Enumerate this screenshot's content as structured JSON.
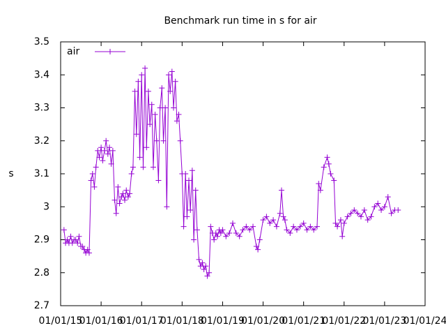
{
  "chart_data": {
    "type": "line",
    "title": "Benchmark run time in s for air",
    "y_label": "s",
    "legend_position": "top-left",
    "xlim": [
      "01/01/15",
      "01/01/24"
    ],
    "xticks": [
      "01/01/15",
      "01/01/16",
      "01/01/17",
      "01/01/18",
      "01/01/19",
      "01/01/20",
      "01/01/21",
      "01/01/22",
      "01/01/23",
      "01/01/24"
    ],
    "ylim": [
      2.7,
      3.5
    ],
    "yticks": [
      2.7,
      2.8,
      2.9,
      3,
      3.1,
      3.2,
      3.3,
      3.4,
      3.5
    ],
    "grid": false,
    "x": [
      "02/01/15",
      "02/15/15",
      "03/01/15",
      "03/15/15",
      "04/01/15",
      "04/15/15",
      "05/01/15",
      "05/15/15",
      "06/01/15",
      "06/15/15",
      "07/01/15",
      "07/15/15",
      "08/01/15",
      "08/15/15",
      "09/01/15",
      "09/15/15",
      "10/01/15",
      "10/15/15",
      "11/01/15",
      "11/15/15",
      "12/01/15",
      "12/15/15",
      "01/01/16",
      "01/15/16",
      "02/01/16",
      "02/15/16",
      "03/01/16",
      "03/15/16",
      "04/01/16",
      "04/15/16",
      "05/01/16",
      "05/15/16",
      "06/01/16",
      "06/15/16",
      "07/01/16",
      "07/15/16",
      "08/01/16",
      "08/15/16",
      "09/01/16",
      "09/15/16",
      "10/01/16",
      "10/15/16",
      "11/01/16",
      "11/15/16",
      "12/01/16",
      "12/15/16",
      "01/01/17",
      "01/15/17",
      "02/01/17",
      "02/15/17",
      "03/01/17",
      "03/15/17",
      "04/01/17",
      "04/15/17",
      "05/01/17",
      "05/15/17",
      "06/01/17",
      "06/15/17",
      "07/01/17",
      "07/15/17",
      "08/01/17",
      "08/15/17",
      "09/01/17",
      "09/15/17",
      "10/01/17",
      "10/15/17",
      "11/01/17",
      "11/15/17",
      "12/01/17",
      "12/15/17",
      "01/01/18",
      "01/15/18",
      "02/01/18",
      "02/15/18",
      "03/01/18",
      "03/15/18",
      "04/01/18",
      "04/15/18",
      "05/01/18",
      "05/15/18",
      "06/01/18",
      "06/15/18",
      "07/01/18",
      "07/15/18",
      "08/01/18",
      "08/15/18",
      "09/01/18",
      "09/15/18",
      "10/01/18",
      "10/15/18",
      "11/01/18",
      "11/15/18",
      "12/01/18",
      "12/15/18",
      "01/01/19",
      "02/01/19",
      "03/01/19",
      "04/01/19",
      "05/01/19",
      "06/01/19",
      "07/01/19",
      "08/01/19",
      "09/01/19",
      "10/01/19",
      "11/01/19",
      "11/15/19",
      "12/01/19",
      "01/01/20",
      "02/01/20",
      "03/01/20",
      "04/01/20",
      "05/01/20",
      "06/01/20",
      "06/15/20",
      "07/01/20",
      "07/15/20",
      "08/01/20",
      "09/01/20",
      "10/01/20",
      "11/01/20",
      "12/01/20",
      "01/01/21",
      "02/01/21",
      "03/01/21",
      "04/01/21",
      "05/01/21",
      "05/15/21",
      "06/01/21",
      "07/01/21",
      "08/01/21",
      "08/15/21",
      "09/01/21",
      "10/01/21",
      "10/15/21",
      "11/01/21",
      "12/01/21",
      "12/15/21",
      "01/01/22",
      "02/01/22",
      "03/01/22",
      "04/01/22",
      "05/01/22",
      "06/01/22",
      "07/01/22",
      "08/01/22",
      "09/01/22",
      "10/01/22",
      "11/01/22",
      "12/01/22",
      "01/01/23",
      "02/01/23",
      "03/01/23",
      "04/01/23",
      "05/01/23"
    ],
    "series": [
      {
        "name": "air",
        "color": "#9400d3",
        "values": [
          2.93,
          2.89,
          2.9,
          2.89,
          2.91,
          2.89,
          2.9,
          2.9,
          2.89,
          2.91,
          2.88,
          2.88,
          2.87,
          2.86,
          2.87,
          2.86,
          3.08,
          3.1,
          3.06,
          3.12,
          3.17,
          3.15,
          3.18,
          3.14,
          3.17,
          3.2,
          3.16,
          3.18,
          3.13,
          3.17,
          3.02,
          2.98,
          3.06,
          3.01,
          3.03,
          3.04,
          3.02,
          3.05,
          3.03,
          3.04,
          3.1,
          3.12,
          3.35,
          3.22,
          3.38,
          3.15,
          3.4,
          3.12,
          3.42,
          3.18,
          3.35,
          3.25,
          3.31,
          3.12,
          3.28,
          3.2,
          3.08,
          3.3,
          3.36,
          3.2,
          3.3,
          3.0,
          3.4,
          3.35,
          3.41,
          3.3,
          3.38,
          3.26,
          3.28,
          3.2,
          3.1,
          2.94,
          3.1,
          2.97,
          3.08,
          2.99,
          3.11,
          2.9,
          3.05,
          2.93,
          2.84,
          2.82,
          2.83,
          2.81,
          2.82,
          2.79,
          2.8,
          2.94,
          2.92,
          2.9,
          2.92,
          2.91,
          2.93,
          2.92,
          2.93,
          2.91,
          2.92,
          2.95,
          2.92,
          2.91,
          2.93,
          2.94,
          2.93,
          2.94,
          2.88,
          2.87,
          2.9,
          2.96,
          2.97,
          2.95,
          2.96,
          2.94,
          2.98,
          3.05,
          2.97,
          2.96,
          2.93,
          2.92,
          2.94,
          2.93,
          2.94,
          2.95,
          2.93,
          2.94,
          2.93,
          2.94,
          3.07,
          3.05,
          3.12,
          3.15,
          3.13,
          3.1,
          3.08,
          2.95,
          2.94,
          2.96,
          2.91,
          2.95,
          2.97,
          2.98,
          2.99,
          2.98,
          2.97,
          2.99,
          2.96,
          2.97,
          3.0,
          3.01,
          2.99,
          3.0,
          3.03,
          2.98,
          2.99,
          2.99
        ]
      }
    ]
  }
}
